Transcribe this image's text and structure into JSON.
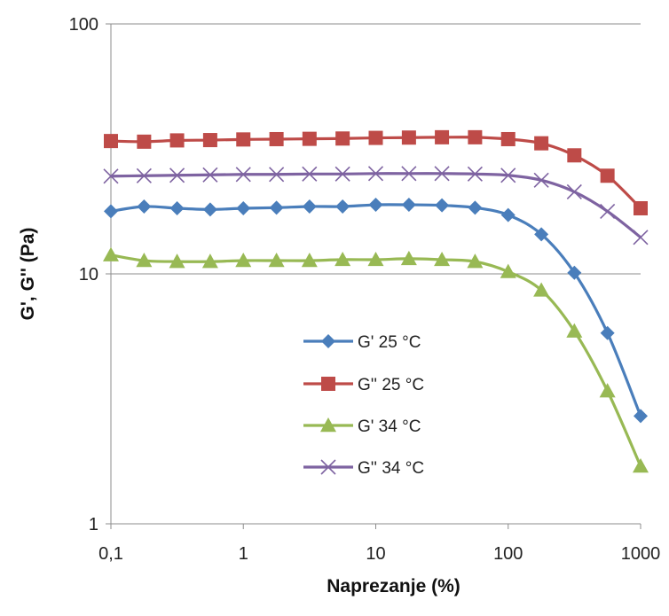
{
  "chart_data": {
    "type": "line",
    "title": "",
    "xlabel": "Naprezanje (%)",
    "ylabel": "G', G'' (Pa)",
    "x_scale": "log",
    "y_scale": "log",
    "xlim": [
      0.1,
      1000
    ],
    "ylim": [
      1,
      100
    ],
    "x_ticks": [
      {
        "value": 0.1,
        "label": "0,1"
      },
      {
        "value": 1,
        "label": "1"
      },
      {
        "value": 10,
        "label": "10"
      },
      {
        "value": 100,
        "label": "100"
      },
      {
        "value": 1000,
        "label": "1000"
      }
    ],
    "y_ticks": [
      {
        "value": 1,
        "label": "1"
      },
      {
        "value": 10,
        "label": "10"
      },
      {
        "value": 100,
        "label": "100"
      }
    ],
    "grid": "horizontal major lines",
    "legend_position": "center-left inside plot",
    "x": [
      0.1,
      0.178,
      0.316,
      0.562,
      1,
      1.78,
      3.16,
      5.62,
      10,
      17.8,
      31.6,
      56.2,
      100,
      178,
      316,
      562,
      1000
    ],
    "series": [
      {
        "name": "G' 25 °C",
        "color": "#4a7ebb",
        "marker": "diamond",
        "values": [
          17.8,
          18.6,
          18.3,
          18.1,
          18.3,
          18.4,
          18.6,
          18.6,
          18.9,
          18.9,
          18.8,
          18.4,
          17.2,
          14.4,
          10.1,
          5.8,
          2.7
        ]
      },
      {
        "name": "G'' 25 °C",
        "color": "#be4b48",
        "marker": "square",
        "values": [
          34.0,
          33.8,
          34.2,
          34.3,
          34.5,
          34.6,
          34.7,
          34.8,
          35.0,
          35.1,
          35.2,
          35.2,
          34.6,
          33.3,
          29.8,
          24.7,
          18.3
        ]
      },
      {
        "name": "G' 34 °C",
        "color": "#98b954",
        "marker": "triangle",
        "values": [
          11.9,
          11.3,
          11.2,
          11.2,
          11.3,
          11.3,
          11.3,
          11.4,
          11.4,
          11.5,
          11.4,
          11.2,
          10.2,
          8.6,
          5.9,
          3.4,
          1.7
        ]
      },
      {
        "name": "G'' 34 °C",
        "color": "#7e63a1",
        "marker": "x",
        "values": [
          24.6,
          24.7,
          24.8,
          24.9,
          25.0,
          25.0,
          25.1,
          25.1,
          25.2,
          25.2,
          25.2,
          25.1,
          24.8,
          23.7,
          21.3,
          17.8,
          14.0
        ]
      }
    ]
  }
}
